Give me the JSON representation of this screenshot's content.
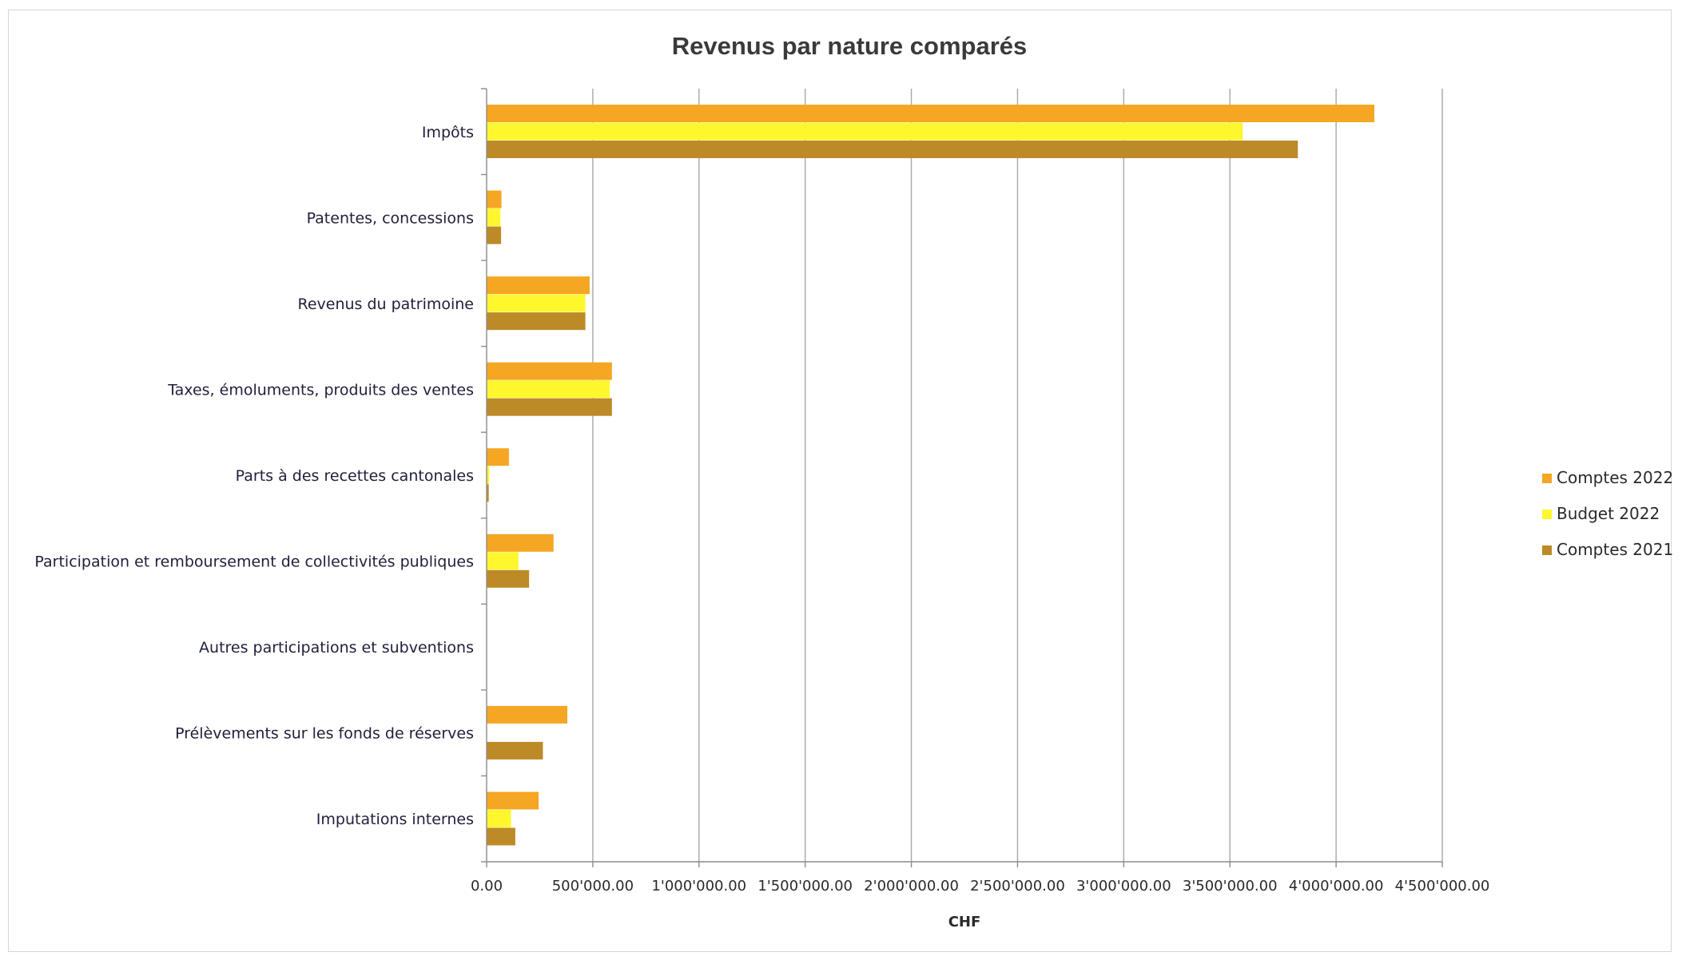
{
  "chart_data": {
    "type": "bar",
    "orientation": "horizontal",
    "title": "Revenus par nature comparés",
    "xlabel": "CHF",
    "ylabel": "",
    "xlim": [
      0,
      4500000
    ],
    "x_ticks": [
      0,
      500000,
      1000000,
      1500000,
      2000000,
      2500000,
      3000000,
      3500000,
      4000000,
      4500000
    ],
    "x_tick_labels": [
      "0.00",
      "500'000.00",
      "1'000'000.00",
      "1'500'000.00",
      "2'000'000.00",
      "2'500'000.00",
      "3'000'000.00",
      "3'500'000.00",
      "4'000'000.00",
      "4'500'000.00"
    ],
    "grid": true,
    "legend_position": "right",
    "categories": [
      "Impôts",
      "Patentes, concessions",
      "Revenus du patrimoine",
      "Taxes, émoluments, produits des ventes",
      "Parts à des recettes cantonales",
      "Participation et remboursement de collectivités publiques",
      "Autres participations et subventions",
      "Prélèvements sur les fonds de réserves",
      "Imputations internes"
    ],
    "series": [
      {
        "name": "Comptes 2022",
        "color": "#F5A623",
        "values": [
          4180000,
          70000,
          485000,
          590000,
          105000,
          315000,
          0,
          380000,
          245000
        ]
      },
      {
        "name": "Budget 2022",
        "color": "#FFF72E",
        "values": [
          3560000,
          65000,
          465000,
          580000,
          12000,
          150000,
          0,
          0,
          115000
        ]
      },
      {
        "name": "Comptes 2021",
        "color": "#BD8A28",
        "values": [
          3820000,
          68000,
          465000,
          590000,
          10000,
          200000,
          0,
          265000,
          135000
        ]
      }
    ]
  }
}
